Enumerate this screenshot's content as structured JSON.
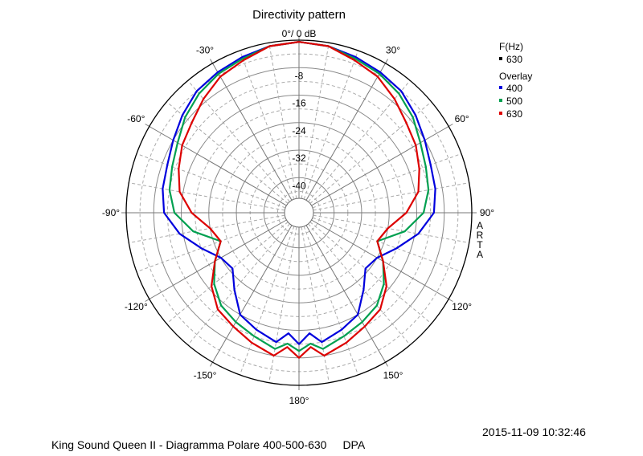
{
  "chart_data": {
    "type": "polar",
    "title": "Directivity pattern",
    "top_label": "0°/ 0 dB",
    "angle_ticks": [
      {
        "angle": -30,
        "label": "-30°"
      },
      {
        "angle": 30,
        "label": "30°"
      },
      {
        "angle": -60,
        "label": "-60°"
      },
      {
        "angle": 60,
        "label": "60°"
      },
      {
        "angle": -90,
        "label": "-90°"
      },
      {
        "angle": 90,
        "label": "90°"
      },
      {
        "angle": -120,
        "label": "-120°"
      },
      {
        "angle": 120,
        "label": "120°"
      },
      {
        "angle": -150,
        "label": "-150°"
      },
      {
        "angle": 150,
        "label": "150°"
      },
      {
        "angle": 180,
        "label": "180°"
      }
    ],
    "radial_ticks": [
      {
        "value": -8,
        "label": "-8"
      },
      {
        "value": -16,
        "label": "-16"
      },
      {
        "value": -24,
        "label": "-24"
      },
      {
        "value": -32,
        "label": "-32"
      },
      {
        "value": -40,
        "label": "-40"
      }
    ],
    "r_range": [
      -46,
      0
    ],
    "r_unit": "dB",
    "side_label": "ARTA",
    "legend": {
      "heading": "F(Hz)",
      "current": {
        "label": "630",
        "color": "#000000"
      },
      "overlay_heading": "Overlay",
      "items": [
        {
          "label": "400",
          "color": "#0000dd"
        },
        {
          "label": "500",
          "color": "#00a050"
        },
        {
          "label": "630",
          "color": "#dd0000"
        }
      ]
    },
    "series": [
      {
        "name": "400",
        "color": "#0000dd",
        "angles": [
          0,
          10,
          20,
          30,
          40,
          50,
          60,
          70,
          80,
          90,
          100,
          110,
          120,
          130,
          140,
          150,
          160,
          170,
          175,
          180
        ],
        "values": [
          -0.5,
          -1,
          -2,
          -3,
          -4,
          -6,
          -8,
          -9.5,
          -10,
          -11,
          -15,
          -20,
          -24,
          -25,
          -21,
          -16,
          -14,
          -12,
          -15,
          -12
        ]
      },
      {
        "name": "500",
        "color": "#00a050",
        "angles": [
          0,
          10,
          20,
          30,
          40,
          50,
          60,
          70,
          80,
          90,
          100,
          110,
          120,
          130,
          140,
          150,
          160,
          170,
          175,
          180
        ],
        "values": [
          -0.5,
          -1,
          -2.5,
          -3.5,
          -5,
          -7,
          -9.5,
          -11,
          -12,
          -14,
          -19,
          -26,
          -22,
          -18,
          -15,
          -13.5,
          -12,
          -10,
          -12,
          -10
        ]
      },
      {
        "name": "630",
        "color": "#dd0000",
        "angles": [
          0,
          10,
          20,
          30,
          40,
          50,
          60,
          70,
          80,
          90,
          100,
          110,
          120,
          130,
          140,
          150,
          160,
          170,
          175,
          180
        ],
        "values": [
          -0.5,
          -1,
          -3,
          -4.5,
          -7,
          -9.5,
          -11,
          -13,
          -15,
          -19,
          -24,
          -26,
          -22,
          -17,
          -13.5,
          -12,
          -10,
          -8,
          -11,
          -8
        ]
      }
    ]
  },
  "footer": {
    "timestamp": "2015-11-09  10:32:46",
    "caption": "King Sound Queen II - Diagramma Polare 400-500-630",
    "tag": "DPA"
  }
}
